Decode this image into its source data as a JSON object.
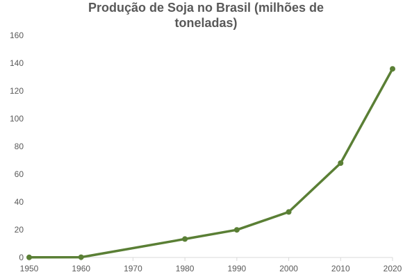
{
  "chart_data": {
    "type": "line",
    "title_line1": "Produção de Soja no Brasil (milhões de",
    "title_line2": "toneladas)",
    "xlabel": "",
    "ylabel": "",
    "x": [
      1950,
      1960,
      1980,
      1990,
      2000,
      2010,
      2020
    ],
    "series": [
      {
        "values": [
          0.1,
          0.2,
          13.3,
          19.9,
          32.8,
          68.0,
          135.9
        ],
        "color": "#5a7f35"
      }
    ],
    "xlim": [
      1950,
      2020
    ],
    "ylim": [
      0,
      160
    ],
    "y_ticks": [
      0,
      20,
      40,
      60,
      80,
      100,
      120,
      140,
      160
    ],
    "x_ticks": [
      1950,
      1960,
      1970,
      1980,
      1990,
      2000,
      2010,
      2020
    ],
    "grid": false,
    "legend": "none",
    "axis_color": "#d9d9d9",
    "text_color": "#595959"
  }
}
